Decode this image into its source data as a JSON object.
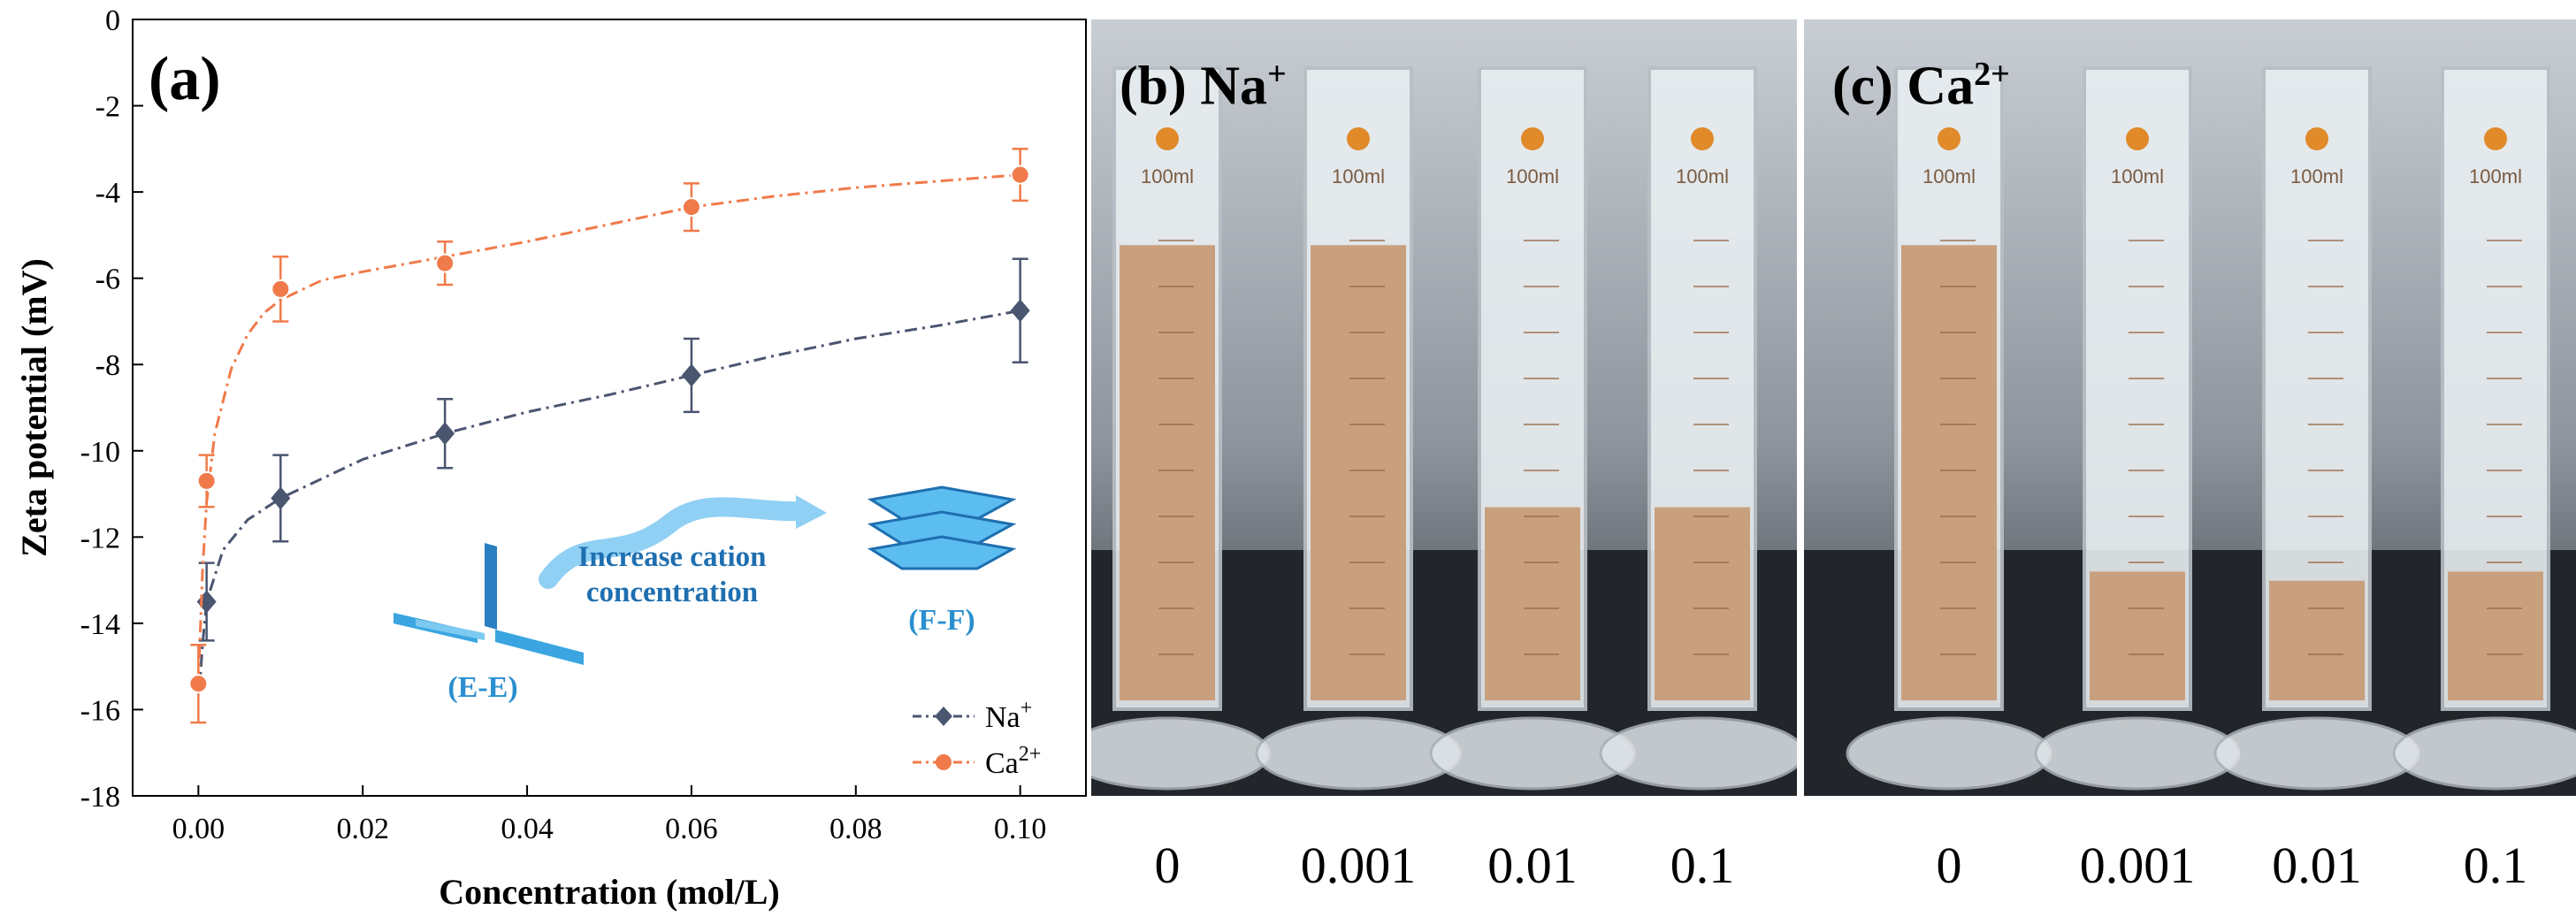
{
  "chart_data": {
    "type": "scatter",
    "panel_label": "(a)",
    "xlabel": "Concentration (mol/L)",
    "ylabel": "Zeta potential (mV)",
    "xlim": [
      -0.008,
      0.108
    ],
    "ylim": [
      -18,
      0
    ],
    "xticks": [
      "0.00",
      "0.02",
      "0.04",
      "0.06",
      "0.08",
      "0.10"
    ],
    "xtick_values": [
      0,
      0.02,
      0.04,
      0.06,
      0.08,
      0.1
    ],
    "yticks": [
      "0",
      "-2",
      "-4",
      "-6",
      "-8",
      "-10",
      "-12",
      "-14",
      "-16",
      "-18"
    ],
    "ytick_values": [
      0,
      -2,
      -4,
      -6,
      -8,
      -10,
      -12,
      -14,
      -16,
      -18
    ],
    "series": [
      {
        "name": "Na+",
        "label_main": "Na",
        "label_sup": "+",
        "color": "#4a5570",
        "marker": "diamond",
        "x": [
          0.001,
          0.01,
          0.03,
          0.06,
          0.1
        ],
        "y": [
          -13.5,
          -11.1,
          -9.6,
          -8.25,
          -6.75
        ],
        "err": [
          0.9,
          1.0,
          0.8,
          0.85,
          1.2
        ],
        "fit_x": [
          0.0001,
          0.0005,
          0.001,
          0.003,
          0.006,
          0.01,
          0.02,
          0.03,
          0.04,
          0.05,
          0.06,
          0.07,
          0.08,
          0.09,
          0.1
        ],
        "fit_y": [
          -15.6,
          -14.5,
          -13.5,
          -12.3,
          -11.6,
          -11.1,
          -10.2,
          -9.6,
          -9.1,
          -8.7,
          -8.25,
          -7.8,
          -7.4,
          -7.1,
          -6.75
        ]
      },
      {
        "name": "Ca2+",
        "label_main": "Ca",
        "label_sup": "2+",
        "color": "#f07a4a",
        "marker": "circle",
        "x": [
          0,
          0.001,
          0.01,
          0.03,
          0.06,
          0.1
        ],
        "y": [
          -15.4,
          -10.7,
          -6.25,
          -5.65,
          -4.35,
          -3.6
        ],
        "err": [
          0.9,
          0.6,
          0.75,
          0.5,
          0.55,
          0.6
        ],
        "fit_x": [
          0,
          0.0005,
          0.001,
          0.002,
          0.004,
          0.006,
          0.008,
          0.01,
          0.015,
          0.02,
          0.03,
          0.04,
          0.05,
          0.06,
          0.07,
          0.08,
          0.09,
          0.1
        ],
        "fit_y": [
          -15.4,
          -12.8,
          -11.2,
          -9.6,
          -8.1,
          -7.3,
          -6.8,
          -6.5,
          -6.05,
          -5.85,
          -5.5,
          -5.15,
          -4.75,
          -4.35,
          -4.1,
          -3.9,
          -3.75,
          -3.6
        ]
      }
    ],
    "annotations": {
      "ee_label": "(E-E)",
      "ff_label": "(F-F)",
      "arrow_text_1": "Increase cation",
      "arrow_text_2": "concentration"
    },
    "legend_position": "bottom-right"
  },
  "photos": {
    "b": {
      "label": "(b) Na",
      "sup": "+",
      "concentrations": [
        "0",
        "0.001",
        "0.01",
        "0.1"
      ]
    },
    "c": {
      "label": "(c) Ca",
      "sup": "2+",
      "concentrations": [
        "0",
        "0.001",
        "0.01",
        "0.1"
      ]
    },
    "cylinder_text": "100ml",
    "sediment_fraction_b": [
      0.99,
      0.99,
      0.42,
      0.42
    ],
    "sediment_fraction_c": [
      0.99,
      0.28,
      0.26,
      0.28
    ]
  }
}
